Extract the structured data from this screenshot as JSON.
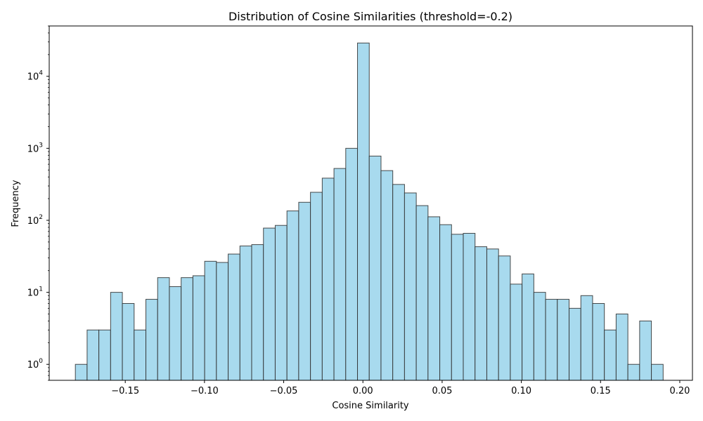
{
  "chart_data": {
    "type": "bar",
    "title": "Distribution of Cosine Similarities (threshold=-0.2)",
    "xlabel": "Cosine Similarity",
    "ylabel": "Frequency",
    "yscale": "log",
    "grid": false,
    "xlim": [
      -0.198,
      0.208
    ],
    "ylim": [
      0.6,
      50000
    ],
    "x_ticks": [
      -0.15,
      -0.1,
      -0.05,
      0.0,
      0.05,
      0.1,
      0.15,
      0.2
    ],
    "x_tick_labels": [
      "−0.15",
      "−0.10",
      "−0.05",
      "0.00",
      "0.05",
      "0.10",
      "0.15",
      "0.20"
    ],
    "y_ticks": [
      1,
      10,
      100,
      1000,
      10000
    ],
    "y_tick_labels": [
      {
        "base": "10",
        "exp": "0"
      },
      {
        "base": "10",
        "exp": "1"
      },
      {
        "base": "10",
        "exp": "2"
      },
      {
        "base": "10",
        "exp": "3"
      },
      {
        "base": "10",
        "exp": "4"
      }
    ],
    "bin_start": -0.1815,
    "bin_width": 0.00742,
    "values": [
      1,
      3,
      3,
      10,
      7,
      3,
      8,
      16,
      12,
      16,
      17,
      27,
      26,
      34,
      44,
      46,
      78,
      85,
      135,
      178,
      245,
      385,
      525,
      1000,
      29000,
      780,
      490,
      315,
      240,
      160,
      112,
      87,
      64,
      66,
      43,
      40,
      32,
      13,
      18,
      10,
      8,
      8,
      6,
      9,
      7,
      3,
      5,
      1,
      4,
      1
    ],
    "bar_fill": "#a8daee",
    "bar_edge": "#2b2b2b"
  }
}
